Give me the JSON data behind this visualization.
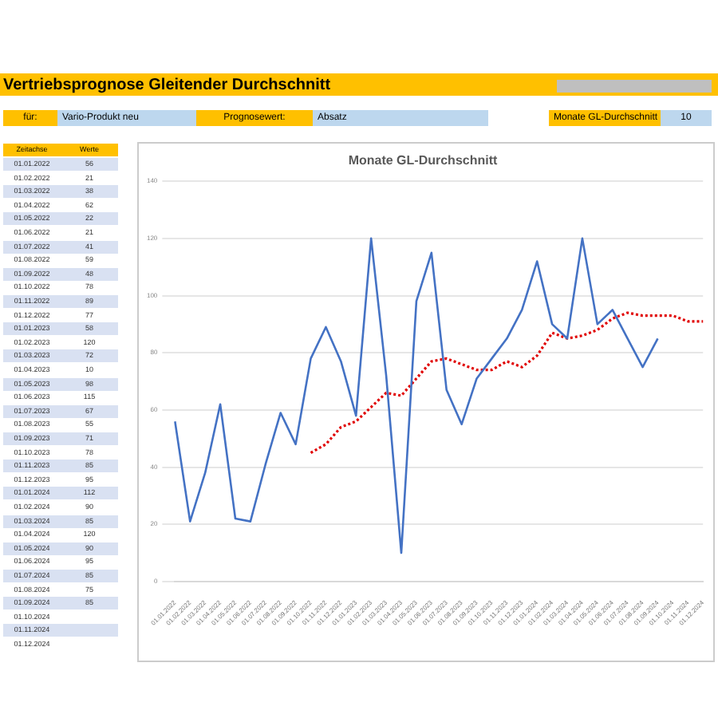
{
  "chart_data": [
    {
      "type": "other",
      "annotations": [
        "Vertriebsprognose Gleitender Durchschnitt",
        "für:",
        "Vario-Produkt neu",
        "Prognosewert:",
        "Absatz",
        "Monate GL-Durchschnitt",
        "10",
        "Zeitachse",
        "Werte",
        "01.01.2022",
        "01.02.2022",
        "01.03.2022",
        "01.04.2022",
        "01.05.2022",
        "01.06.2022",
        "01.07.2022",
        "01.08.2022",
        "01.09.2022",
        "01.10.2022",
        "01.11.2022",
        "01.12.2022",
        "01.01.2023",
        "01.02.2023",
        "01.03.2023",
        "01.04.2023",
        "01.05.2023",
        "01.06.2023",
        "01.07.2023",
        "01.08.2023",
        "01.09.2023",
        "01.10.2023",
        "01.11.2023",
        "01.12.2023",
        "01.01.2024",
        "01.02.2024",
        "01.03.2024",
        "01.04.2024",
        "01.05.2024",
        "01.06.2024",
        "01.07.2024",
        "01.08.2024",
        "01.09.2024",
        "01.10.2024",
        "01.11.2024",
        "01.12.2024",
        "56",
        "21",
        "38",
        "62",
        "22",
        "21",
        "41",
        "59",
        "48",
        "78",
        "89",
        "77",
        "58",
        "120",
        "72",
        "10",
        "98",
        "115",
        "67",
        "55",
        "71",
        "78",
        "85",
        "95",
        "112",
        "90",
        "85",
        "120",
        "90",
        "95",
        "85",
        "75",
        "85"
      ]
    },
    {
      "type": "line",
      "title": "Monate GL-Durchschnitt",
      "categories": [
        "01.01.2022",
        "01.02.2022",
        "01.03.2022",
        "01.04.2022",
        "01.05.2022",
        "01.06.2022",
        "01.07.2022",
        "01.08.2022",
        "01.09.2022",
        "01.10.2022",
        "01.11.2022",
        "01.12.2022",
        "01.01.2023",
        "01.02.2023",
        "01.03.2023",
        "01.04.2023",
        "01.05.2023",
        "01.06.2023",
        "01.07.2023",
        "01.08.2023",
        "01.09.2023",
        "01.10.2023",
        "01.11.2023",
        "01.12.2023",
        "01.01.2024",
        "01.02.2024",
        "01.03.2024",
        "01.04.2024",
        "01.05.2024",
        "01.06.2024",
        "01.07.2024",
        "01.08.2024",
        "01.09.2024",
        "01.10.2024",
        "01.11.2024",
        "01.12.2024"
      ],
      "series": [
        {
          "color": "#4472c4",
          "values": [
            56,
            21,
            38,
            62,
            22,
            21,
            41,
            59,
            48,
            78,
            89,
            77,
            58,
            120,
            72,
            10,
            98,
            115,
            67,
            55,
            71,
            78,
            85,
            95,
            112,
            90,
            85,
            120,
            90,
            95,
            85,
            75,
            85,
            null,
            null,
            null
          ]
        },
        {
          "color": "#e00000",
          "line_style": "dotted",
          "values": [
            null,
            null,
            null,
            null,
            null,
            null,
            null,
            null,
            null,
            45,
            48,
            54,
            56,
            61,
            66,
            65,
            71,
            77,
            78,
            76,
            74,
            74,
            77,
            75,
            79,
            87,
            85,
            86,
            88,
            92,
            94,
            93,
            93,
            93,
            91,
            91
          ]
        }
      ],
      "ylim": [
        0,
        140
      ],
      "yticks": [
        0,
        20,
        40,
        60,
        80,
        100,
        120,
        140
      ],
      "grid": "y",
      "legend": false,
      "marker": "none"
    }
  ]
}
